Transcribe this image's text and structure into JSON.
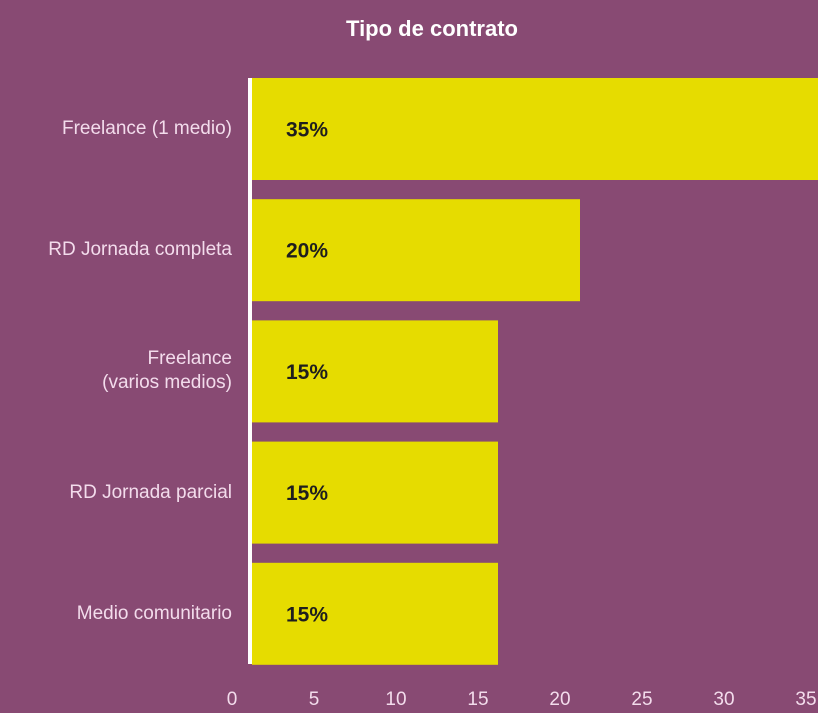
{
  "chart_data": {
    "type": "bar",
    "orientation": "horizontal",
    "title": "Tipo de contrato",
    "categories": [
      "Freelance (1 medio)",
      "RD Jornada completa",
      "Freelance\n(varios medios)",
      "RD Jornada parcial",
      "Medio comunitario"
    ],
    "values": [
      35,
      20,
      15,
      15,
      15
    ],
    "value_labels": [
      "35%",
      "20%",
      "15%",
      "15%",
      "15%"
    ],
    "color": "#e6dc00",
    "xlim": [
      0,
      35
    ],
    "xticks": [
      0,
      5,
      10,
      15,
      20,
      25,
      30,
      35
    ],
    "grid": false
  }
}
